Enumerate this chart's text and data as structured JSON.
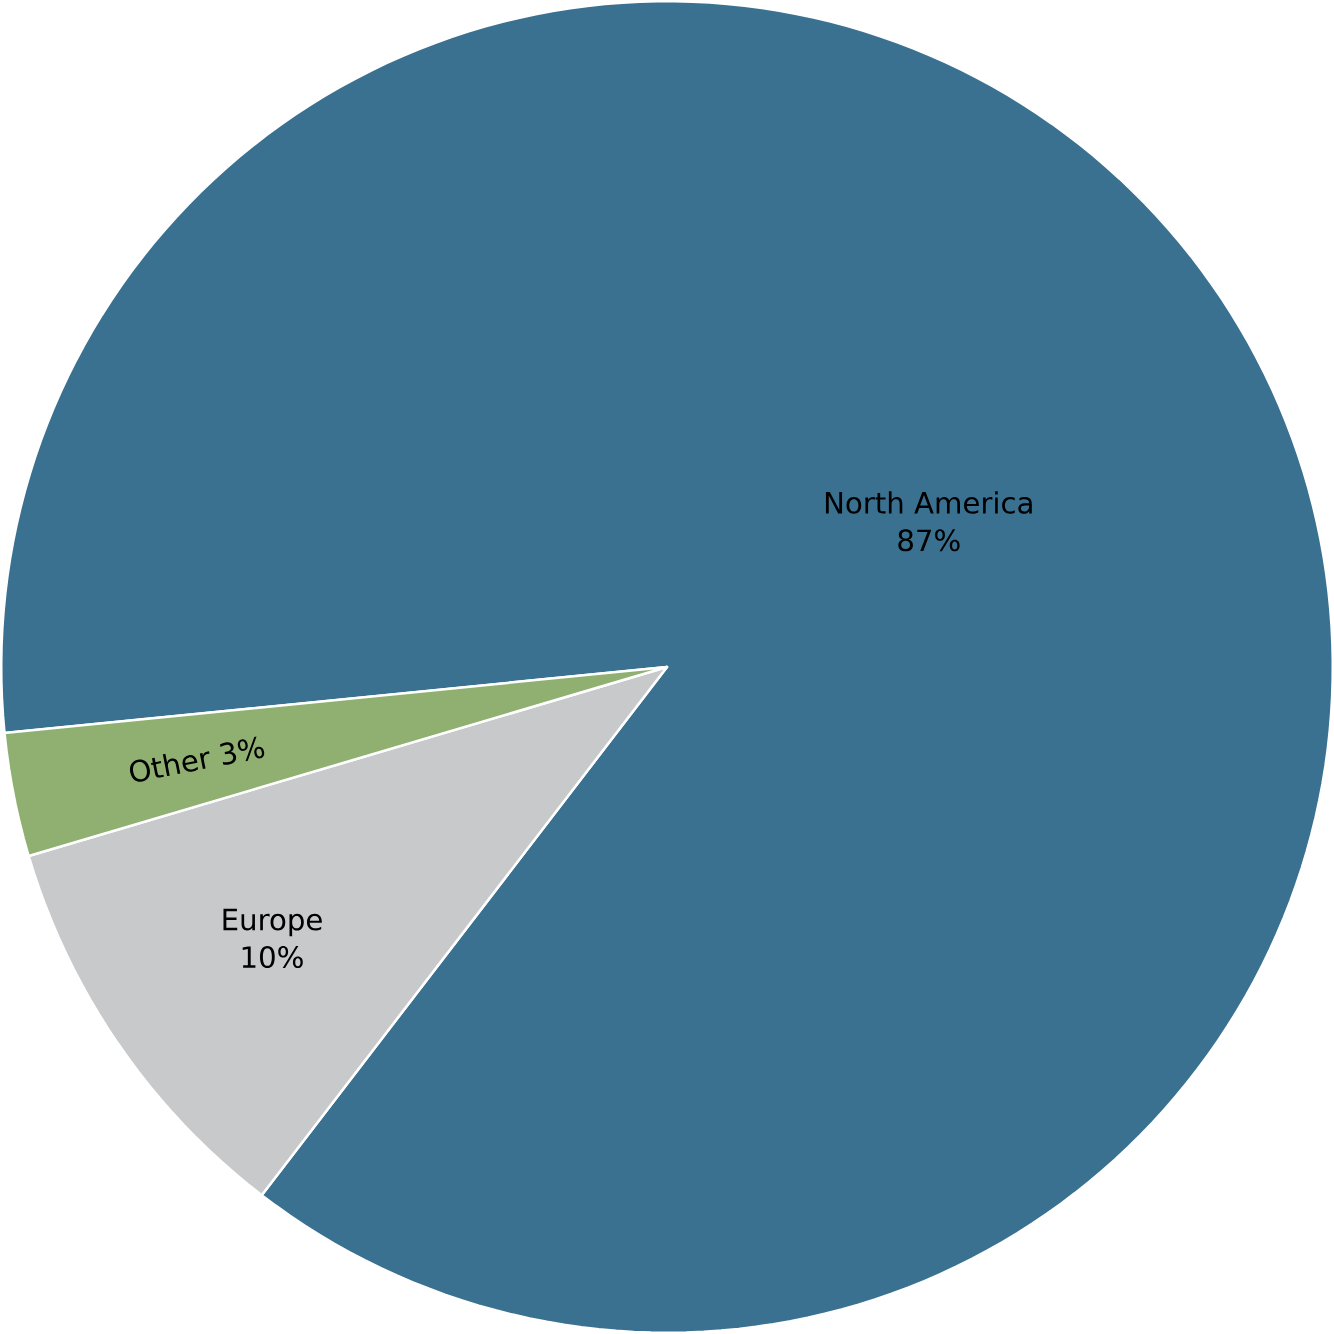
{
  "chart_data": {
    "type": "pie",
    "categories": [
      "North America",
      "Europe",
      "Other"
    ],
    "values": [
      87,
      10,
      3
    ],
    "value_labels": [
      "87%",
      "10%",
      "3%"
    ],
    "colors": [
      "#3a7190",
      "#c8c9cb",
      "#8fb070"
    ]
  }
}
